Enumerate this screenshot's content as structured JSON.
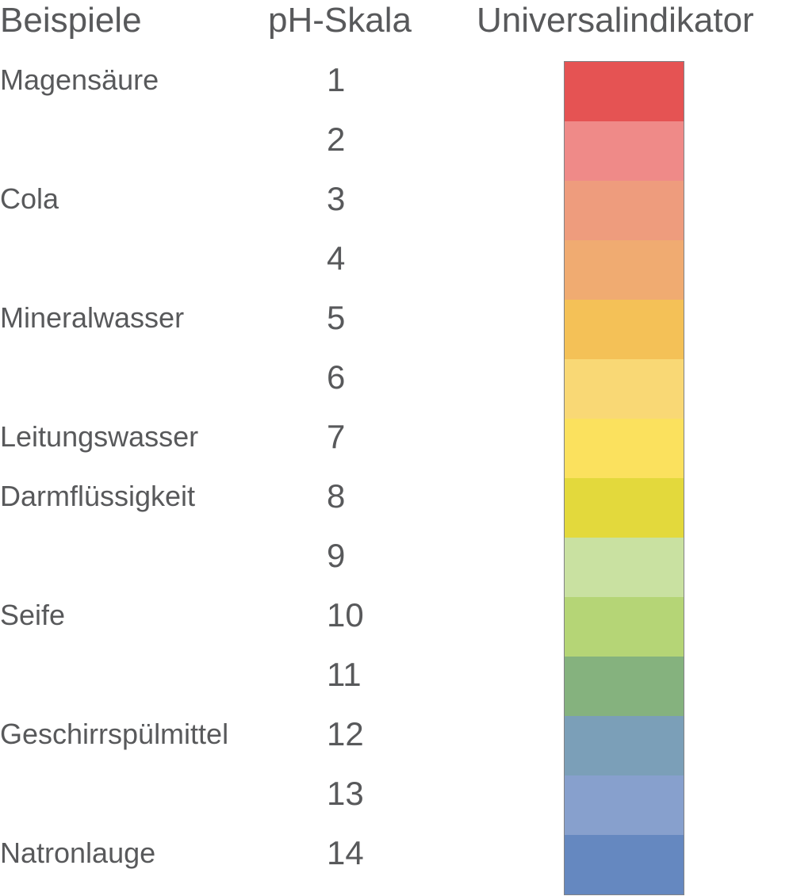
{
  "headers": {
    "examples": "Beispiele",
    "scale": "pH-Skala",
    "indicator": "Universalindikator"
  },
  "rows": [
    {
      "example": "Magensäure",
      "ph": "1",
      "color": "#e55353"
    },
    {
      "example": "",
      "ph": "2",
      "color": "#ef8a88"
    },
    {
      "example": "Cola",
      "ph": "3",
      "color": "#ee9c7d"
    },
    {
      "example": "",
      "ph": "4",
      "color": "#f0ab71"
    },
    {
      "example": "Mineralwasser",
      "ph": "5",
      "color": "#f4c157"
    },
    {
      "example": "",
      "ph": "6",
      "color": "#f9d875"
    },
    {
      "example": "Leitungswasser",
      "ph": "7",
      "color": "#fbe15e"
    },
    {
      "example": "Darmflüssigkeit",
      "ph": "8",
      "color": "#e3d93c"
    },
    {
      "example": "",
      "ph": "9",
      "color": "#c9e1a1"
    },
    {
      "example": "Seife",
      "ph": "10",
      "color": "#b5d576"
    },
    {
      "example": "",
      "ph": "11",
      "color": "#85b27e"
    },
    {
      "example": "Geschirrspülmittel",
      "ph": "12",
      "color": "#7b9fb8"
    },
    {
      "example": "",
      "ph": "13",
      "color": "#87a0cd"
    },
    {
      "example": "Natronlauge",
      "ph": "14",
      "color": "#6588c0"
    }
  ]
}
